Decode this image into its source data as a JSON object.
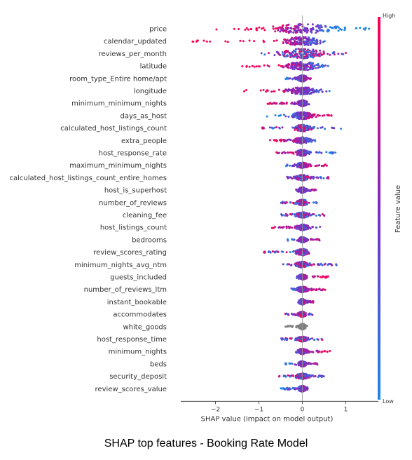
{
  "caption": "SHAP top features - Booking Rate Model",
  "chart_data": {
    "type": "scatter",
    "subtype": "shap_beeswarm",
    "xlabel": "SHAP value (impact on model output)",
    "xlim": [
      -2.8,
      1.75
    ],
    "xticks": [
      -2,
      -1,
      0,
      1
    ],
    "colorbar": {
      "label": "Feature value",
      "high": "High",
      "low": "Low",
      "low_color": "#1e88e5",
      "mid_color": "#7b2cc4",
      "high_color": "#ff0052"
    },
    "grey_color": "#808080",
    "features": [
      {
        "name": "price",
        "min": -2.1,
        "max": 1.55,
        "spread": 0.85,
        "width": 0.85,
        "hi": "left"
      },
      {
        "name": "calendar_updated",
        "min": -2.65,
        "max": 0.6,
        "spread": 0.5,
        "width": 0.75,
        "hi": "left"
      },
      {
        "name": "reviews_per_month",
        "min": -0.95,
        "max": 1.0,
        "spread": 0.55,
        "width": 0.9,
        "hi": "mixed"
      },
      {
        "name": "latitude",
        "min": -1.4,
        "max": 0.6,
        "spread": 0.4,
        "width": 0.75,
        "hi": "left"
      },
      {
        "name": "room_type_Entire home/apt",
        "min": -0.4,
        "max": 0.2,
        "spread": 0.12,
        "width": 0.5,
        "hi": "right"
      },
      {
        "name": "longitude",
        "min": -1.4,
        "max": 0.65,
        "spread": 0.35,
        "width": 0.65,
        "hi": "left"
      },
      {
        "name": "minimum_minimum_nights",
        "min": -0.8,
        "max": 0.2,
        "spread": 0.12,
        "width": 0.5,
        "hi": "left"
      },
      {
        "name": "days_as_host",
        "min": -0.85,
        "max": 0.7,
        "spread": 0.25,
        "width": 0.6,
        "hi": "right"
      },
      {
        "name": "calculated_host_listings_count",
        "min": -0.95,
        "max": 0.9,
        "spread": 0.2,
        "width": 0.55,
        "hi": "mixed"
      },
      {
        "name": "extra_people",
        "min": -0.75,
        "max": 0.35,
        "spread": 0.2,
        "width": 0.5,
        "hi": "left"
      },
      {
        "name": "host_response_rate",
        "min": -0.65,
        "max": 0.9,
        "spread": 0.15,
        "width": 0.5,
        "hi": "left"
      },
      {
        "name": "maximum_minimum_nights",
        "min": -0.4,
        "max": 0.6,
        "spread": 0.15,
        "width": 0.4,
        "hi": "right"
      },
      {
        "name": "calculated_host_listings_count_entire_homes",
        "min": -0.35,
        "max": 0.6,
        "spread": 0.15,
        "width": 0.45,
        "hi": "mixed"
      },
      {
        "name": "host_is_superhost",
        "min": -0.15,
        "max": 0.35,
        "spread": 0.1,
        "width": 0.45,
        "hi": "right"
      },
      {
        "name": "number_of_reviews",
        "min": -0.5,
        "max": 0.35,
        "spread": 0.15,
        "width": 0.45,
        "hi": "mixed"
      },
      {
        "name": "cleaning_fee",
        "min": -0.5,
        "max": 0.55,
        "spread": 0.15,
        "width": 0.45,
        "hi": "mixed"
      },
      {
        "name": "host_listings_count",
        "min": -0.7,
        "max": 0.5,
        "spread": 0.15,
        "width": 0.45,
        "hi": "left"
      },
      {
        "name": "bedrooms",
        "min": -0.35,
        "max": 0.4,
        "spread": 0.1,
        "width": 0.4,
        "hi": "right"
      },
      {
        "name": "review_scores_rating",
        "min": -0.9,
        "max": 0.25,
        "spread": 0.15,
        "width": 0.55,
        "hi": "mixed"
      },
      {
        "name": "minimum_nights_avg_ntm",
        "min": -0.45,
        "max": 0.85,
        "spread": 0.15,
        "width": 0.45,
        "hi": "mixed"
      },
      {
        "name": "guests_included",
        "min": -0.15,
        "max": 0.65,
        "spread": 0.1,
        "width": 0.4,
        "hi": "right"
      },
      {
        "name": "number_of_reviews_ltm",
        "min": -0.25,
        "max": 0.55,
        "spread": 0.15,
        "width": 0.45,
        "hi": "right"
      },
      {
        "name": "instant_bookable",
        "min": -0.1,
        "max": 0.25,
        "spread": 0.08,
        "width": 0.45,
        "hi": "right"
      },
      {
        "name": "accommodates",
        "min": -0.4,
        "max": 0.25,
        "spread": 0.1,
        "width": 0.4,
        "hi": "mixed"
      },
      {
        "name": "white_goods",
        "min": -0.4,
        "max": 0.12,
        "spread": 0.08,
        "width": 0.45,
        "hi": "grey"
      },
      {
        "name": "host_response_time",
        "min": -0.5,
        "max": 0.5,
        "spread": 0.12,
        "width": 0.4,
        "hi": "mixed"
      },
      {
        "name": "minimum_nights",
        "min": -0.15,
        "max": 0.7,
        "spread": 0.12,
        "width": 0.4,
        "hi": "right"
      },
      {
        "name": "beds",
        "min": -0.4,
        "max": 0.35,
        "spread": 0.1,
        "width": 0.4,
        "hi": "right"
      },
      {
        "name": "security_deposit",
        "min": -0.55,
        "max": 0.6,
        "spread": 0.15,
        "width": 0.45,
        "hi": "mixed"
      },
      {
        "name": "review_scores_value",
        "min": -0.5,
        "max": 0.15,
        "spread": 0.1,
        "width": 0.45,
        "hi": "right"
      }
    ]
  }
}
